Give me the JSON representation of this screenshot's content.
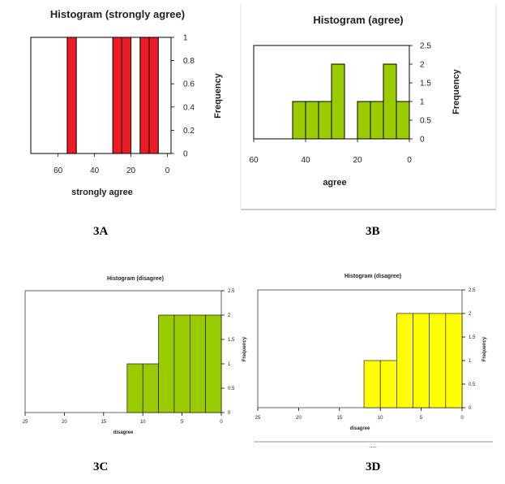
{
  "figure_labels": {
    "a": "3A",
    "b": "3B",
    "c": "3C",
    "d": "3D"
  },
  "dots": "....",
  "chart_data": [
    {
      "id": "3A",
      "type": "bar",
      "title": "Histogram (strongly agree)",
      "xlabel": "strongly agree",
      "ylabel": "Frequency",
      "xlim": [
        75,
        -2
      ],
      "ylim": [
        0,
        1
      ],
      "x_ticks": [
        60,
        40,
        20,
        0
      ],
      "y_ticks": [
        "0",
        "0.2",
        "0.4",
        "0.6",
        "0.8",
        "1"
      ],
      "bin_width": 5,
      "bins": [
        {
          "x0": 50,
          "x1": 55,
          "value": 1
        },
        {
          "x0": 25,
          "x1": 30,
          "value": 1
        },
        {
          "x0": 20,
          "x1": 25,
          "value": 1
        },
        {
          "x0": 10,
          "x1": 15,
          "value": 1
        },
        {
          "x0": 5,
          "x1": 10,
          "value": 1
        }
      ],
      "color": "#ed1c24"
    },
    {
      "id": "3B",
      "type": "bar",
      "title": "Histogram (agree)",
      "xlabel": "agree",
      "ylabel": "Frequency",
      "xlim": [
        60,
        0
      ],
      "ylim": [
        0,
        2.5
      ],
      "x_ticks": [
        60,
        40,
        20,
        0
      ],
      "y_ticks": [
        "0",
        "0.5",
        "1",
        "1.5",
        "2",
        "2.5"
      ],
      "bin_width": 5,
      "bins": [
        {
          "x0": 40,
          "x1": 45,
          "value": 1
        },
        {
          "x0": 35,
          "x1": 40,
          "value": 1
        },
        {
          "x0": 30,
          "x1": 35,
          "value": 1
        },
        {
          "x0": 25,
          "x1": 30,
          "value": 2
        },
        {
          "x0": 15,
          "x1": 20,
          "value": 1
        },
        {
          "x0": 10,
          "x1": 15,
          "value": 1
        },
        {
          "x0": 5,
          "x1": 10,
          "value": 2
        },
        {
          "x0": 0,
          "x1": 5,
          "value": 1
        }
      ],
      "color": "#99cc00"
    },
    {
      "id": "3C",
      "type": "bar",
      "title": "Histogram (disagree)",
      "xlabel": "disagree",
      "ylabel": "Frequency",
      "xlim": [
        25,
        0
      ],
      "ylim": [
        0,
        2.5
      ],
      "x_ticks": [
        25,
        20,
        15,
        10,
        5,
        0
      ],
      "y_ticks": [
        "0",
        "0.5",
        "1",
        "1.5",
        "2",
        "2.5"
      ],
      "bin_width": 2,
      "bins": [
        {
          "x0": 10,
          "x1": 12,
          "value": 1
        },
        {
          "x0": 8,
          "x1": 10,
          "value": 1
        },
        {
          "x0": 6,
          "x1": 8,
          "value": 2
        },
        {
          "x0": 4,
          "x1": 6,
          "value": 2
        },
        {
          "x0": 2,
          "x1": 4,
          "value": 2
        },
        {
          "x0": 0,
          "x1": 2,
          "value": 2
        }
      ],
      "color": "#99cc00"
    },
    {
      "id": "3D",
      "type": "bar",
      "title": "Histogram (disagree)",
      "xlabel": "disagree",
      "ylabel": "Frequency",
      "xlim": [
        25,
        0
      ],
      "ylim": [
        0,
        2.5
      ],
      "x_ticks": [
        25,
        20,
        15,
        10,
        5,
        0
      ],
      "y_ticks": [
        "0",
        "0.5",
        "1",
        "1.5",
        "2",
        "2.5"
      ],
      "bin_width": 2,
      "bins": [
        {
          "x0": 10,
          "x1": 12,
          "value": 1
        },
        {
          "x0": 8,
          "x1": 10,
          "value": 1
        },
        {
          "x0": 6,
          "x1": 8,
          "value": 2
        },
        {
          "x0": 4,
          "x1": 6,
          "value": 2
        },
        {
          "x0": 2,
          "x1": 4,
          "value": 2
        },
        {
          "x0": 0,
          "x1": 2,
          "value": 2
        }
      ],
      "color": "#ffff00"
    }
  ]
}
